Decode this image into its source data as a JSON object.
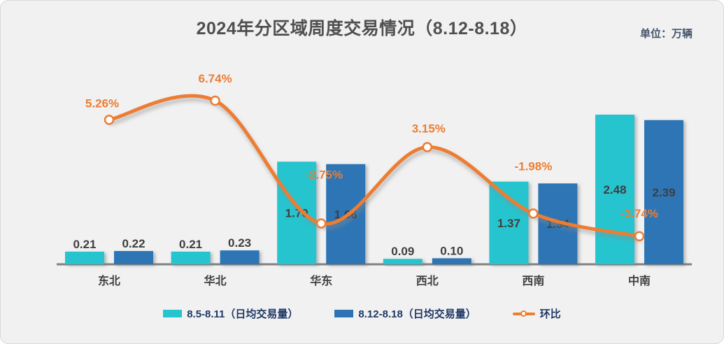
{
  "card": {
    "title": "2024年分区域周度交易情况（8.12-8.18）",
    "unit_label": "单位：万辆",
    "background": "#F1F1F2"
  },
  "chart_data": {
    "type": "bar",
    "subtype": "grouped-bars-with-line-overlay",
    "title": "2024年分区域周度交易情况（8.12-8.18）",
    "unit": "万辆",
    "categories": [
      "东北",
      "华北",
      "华东",
      "西北",
      "西南",
      "中南"
    ],
    "series": [
      {
        "name": "8.5-8.11（日均交易量）",
        "type": "bar",
        "color": "#26C4CE",
        "values": [
          0.21,
          0.21,
          1.7,
          0.09,
          1.37,
          2.48
        ]
      },
      {
        "name": "8.12-8.18（日均交易量）",
        "type": "bar",
        "color": "#2E74B5",
        "values": [
          0.22,
          0.23,
          1.66,
          0.1,
          1.34,
          2.39
        ]
      },
      {
        "name": "环比",
        "type": "line",
        "color": "#ED7D31",
        "values_pct": [
          5.26,
          6.74,
          -2.75,
          3.15,
          -1.98,
          -3.74
        ]
      }
    ],
    "value_label_decimals": 2,
    "layout": {
      "bar_axis_range": [
        0,
        2.75
      ],
      "pct_axis_visible": false,
      "grid": false,
      "legend_position": "bottom",
      "pct_label_dx": [
        -10,
        0,
        4,
        2,
        0,
        0
      ],
      "pct_label_dy": [
        -18,
        -26,
        -64,
        -21,
        -62,
        -27
      ]
    }
  },
  "legend": {
    "items": [
      {
        "label": "8.5-8.11（日均交易量）",
        "type": "bar",
        "color": "#26C4CE"
      },
      {
        "label": "8.12-8.18（日均交易量）",
        "type": "bar",
        "color": "#2E74B5"
      },
      {
        "label": "环比",
        "type": "line",
        "color": "#ED7D31"
      }
    ]
  },
  "colors": {
    "title_text": "#4F4F4F",
    "unit_text": "#44546A",
    "bar_value_text": "#3F3F3F",
    "category_text": "#404040",
    "pct_label_text": "#ED7D31",
    "legend_text": "#1F3864",
    "axis_line": "#808080",
    "marker_fill": "#FFFFFF"
  }
}
